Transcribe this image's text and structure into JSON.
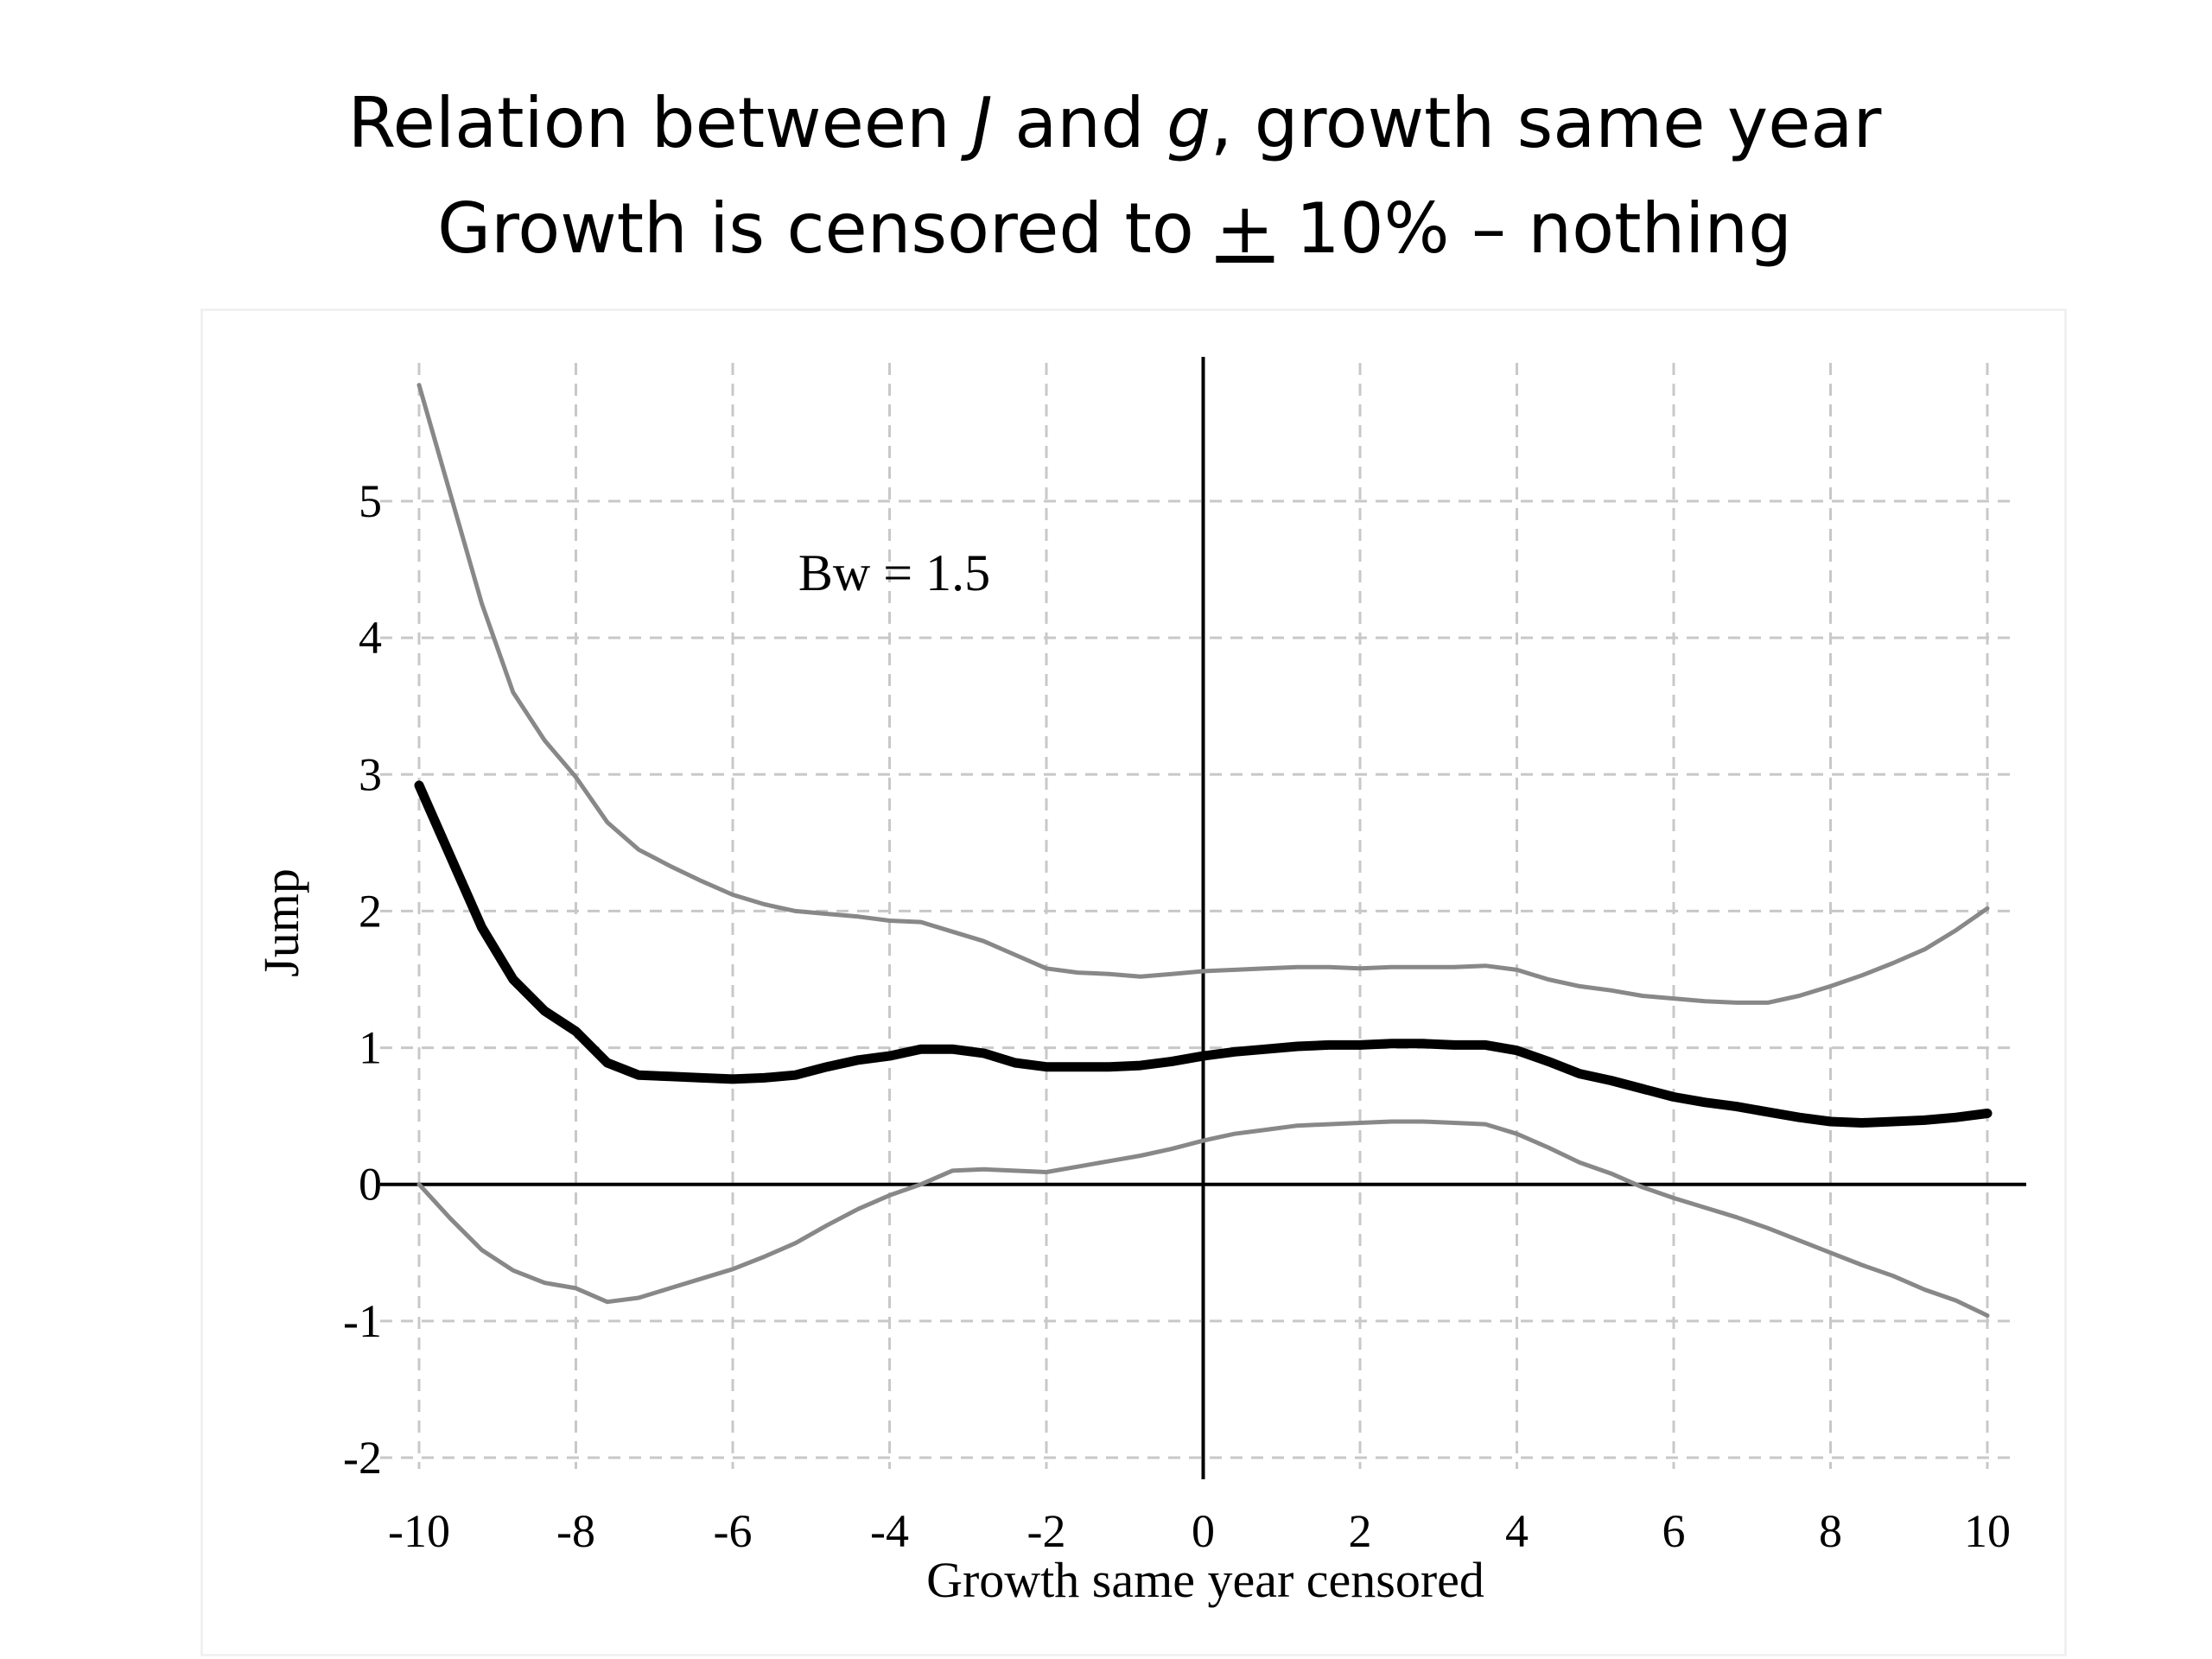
{
  "title": {
    "line1_pre": "Relation between ",
    "line1_j": "J",
    "line1_mid": " and ",
    "line1_g": "g",
    "line1_post": ", growth same year",
    "line2_pre": "Growth is censored to ",
    "line2_pm": "+",
    "line2_post": " 10% – nothing"
  },
  "chart_data": {
    "type": "line",
    "xlabel": "Growth same year censored",
    "ylabel": "Jump",
    "xlim": [
      -10,
      10
    ],
    "ylim": [
      -2,
      5
    ],
    "xticks": [
      "-10",
      "-8",
      "-6",
      "-4",
      "-2",
      "0",
      "2",
      "4",
      "6",
      "8",
      "10"
    ],
    "yticks": [
      "-2",
      "-1",
      "0",
      "1",
      "2",
      "3",
      "4",
      "5"
    ],
    "grid": true,
    "annotation": "Bw = 1.5",
    "reference_lines": {
      "x": 0,
      "y": 0
    },
    "colors": {
      "estimate": "#000000",
      "bounds": "#888888",
      "grid": "#c8c8c8"
    },
    "series": [
      {
        "role": "upper",
        "x": [
          -10,
          -9.6,
          -9.2,
          -8.8,
          -8.4,
          -8.0,
          -7.6,
          -7.2,
          -6.8,
          -6.4,
          -6.0,
          -5.6,
          -5.2,
          -4.8,
          -4.4,
          -4.0,
          -3.6,
          -3.2,
          -2.8,
          -2.4,
          -2.0,
          -1.6,
          -1.2,
          -0.8,
          -0.4,
          0.0,
          0.4,
          0.8,
          1.2,
          1.6,
          2.0,
          2.4,
          2.8,
          3.2,
          3.6,
          4.0,
          4.4,
          4.8,
          5.2,
          5.6,
          6.0,
          6.4,
          6.8,
          7.2,
          7.6,
          8.0,
          8.4,
          8.8,
          9.2,
          9.6,
          10.0
        ],
        "y": [
          5.85,
          5.05,
          4.25,
          3.6,
          3.25,
          2.98,
          2.65,
          2.45,
          2.33,
          2.22,
          2.12,
          2.05,
          2.0,
          1.98,
          1.96,
          1.93,
          1.92,
          1.85,
          1.78,
          1.68,
          1.58,
          1.55,
          1.54,
          1.52,
          1.54,
          1.56,
          1.57,
          1.58,
          1.59,
          1.59,
          1.58,
          1.59,
          1.59,
          1.59,
          1.6,
          1.57,
          1.5,
          1.45,
          1.42,
          1.38,
          1.36,
          1.34,
          1.33,
          1.33,
          1.38,
          1.45,
          1.53,
          1.62,
          1.72,
          1.86,
          2.02
        ]
      },
      {
        "role": "estimate",
        "x": [
          -10,
          -9.6,
          -9.2,
          -8.8,
          -8.4,
          -8.0,
          -7.6,
          -7.2,
          -6.8,
          -6.4,
          -6.0,
          -5.6,
          -5.2,
          -4.8,
          -4.4,
          -4.0,
          -3.6,
          -3.2,
          -2.8,
          -2.4,
          -2.0,
          -1.6,
          -1.2,
          -0.8,
          -0.4,
          0.0,
          0.4,
          0.8,
          1.2,
          1.6,
          2.0,
          2.4,
          2.8,
          3.2,
          3.6,
          4.0,
          4.4,
          4.8,
          5.2,
          5.6,
          6.0,
          6.4,
          6.8,
          7.2,
          7.6,
          8.0,
          8.4,
          8.8,
          9.2,
          9.6,
          10.0
        ],
        "y": [
          2.92,
          2.4,
          1.88,
          1.5,
          1.27,
          1.12,
          0.89,
          0.8,
          0.79,
          0.78,
          0.77,
          0.78,
          0.8,
          0.86,
          0.91,
          0.94,
          0.99,
          0.99,
          0.96,
          0.89,
          0.86,
          0.86,
          0.86,
          0.87,
          0.9,
          0.94,
          0.97,
          0.99,
          1.01,
          1.02,
          1.02,
          1.03,
          1.03,
          1.02,
          1.02,
          0.98,
          0.9,
          0.81,
          0.76,
          0.7,
          0.64,
          0.6,
          0.57,
          0.53,
          0.49,
          0.46,
          0.45,
          0.46,
          0.47,
          0.49,
          0.52
        ]
      },
      {
        "role": "lower",
        "x": [
          -10,
          -9.6,
          -9.2,
          -8.8,
          -8.4,
          -8.0,
          -7.6,
          -7.2,
          -6.8,
          -6.4,
          -6.0,
          -5.6,
          -5.2,
          -4.8,
          -4.4,
          -4.0,
          -3.6,
          -3.2,
          -2.8,
          -2.4,
          -2.0,
          -1.6,
          -1.2,
          -0.8,
          -0.4,
          0.0,
          0.4,
          0.8,
          1.2,
          1.6,
          2.0,
          2.4,
          2.8,
          3.2,
          3.6,
          4.0,
          4.4,
          4.8,
          5.2,
          5.6,
          6.0,
          6.4,
          6.8,
          7.2,
          7.6,
          8.0,
          8.4,
          8.8,
          9.2,
          9.6,
          10.0
        ],
        "y": [
          0.0,
          -0.25,
          -0.48,
          -0.63,
          -0.72,
          -0.76,
          -0.86,
          -0.83,
          -0.76,
          -0.69,
          -0.62,
          -0.53,
          -0.43,
          -0.3,
          -0.18,
          -0.08,
          0.0,
          0.1,
          0.11,
          0.1,
          0.09,
          0.13,
          0.17,
          0.21,
          0.26,
          0.32,
          0.37,
          0.4,
          0.43,
          0.44,
          0.45,
          0.46,
          0.46,
          0.45,
          0.44,
          0.37,
          0.27,
          0.16,
          0.08,
          -0.02,
          -0.1,
          -0.17,
          -0.24,
          -0.32,
          -0.41,
          -0.5,
          -0.59,
          -0.67,
          -0.77,
          -0.85,
          -0.96
        ]
      }
    ]
  }
}
